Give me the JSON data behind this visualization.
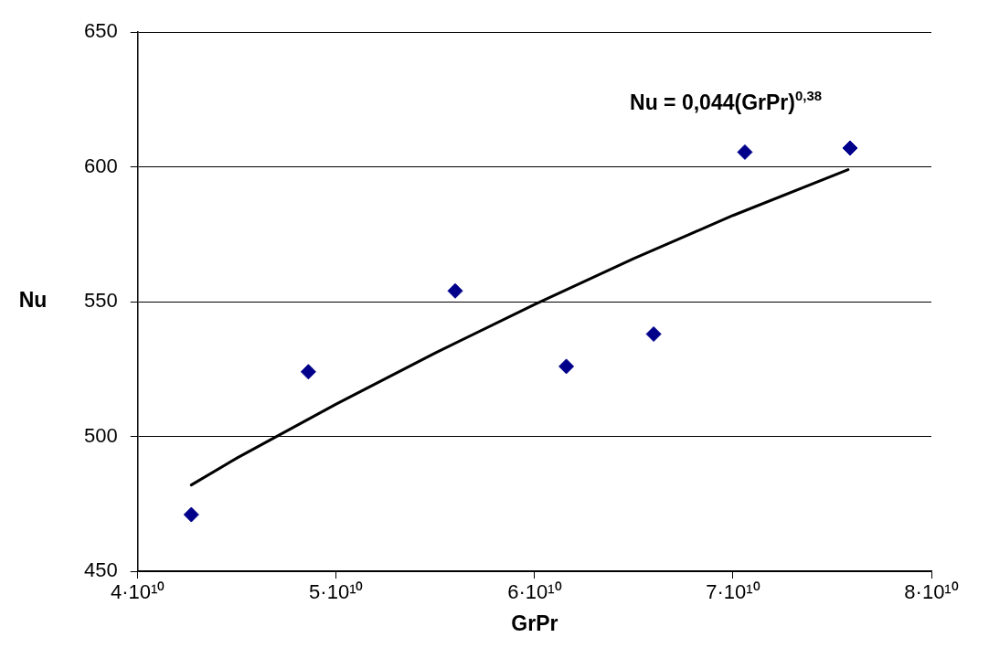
{
  "chart_data": {
    "type": "scatter",
    "xlabel": "GrPr",
    "ylabel": "Nu",
    "xlim": [
      40000000000,
      80000000000
    ],
    "ylim": [
      450,
      650
    ],
    "xticks": [
      {
        "value": 40000000000,
        "label": "4·10¹⁰"
      },
      {
        "value": 50000000000,
        "label": "5·10¹⁰"
      },
      {
        "value": 60000000000,
        "label": "6·10¹⁰"
      },
      {
        "value": 70000000000,
        "label": "7·10¹⁰"
      },
      {
        "value": 80000000000,
        "label": "8·10¹⁰"
      }
    ],
    "yticks": [
      450,
      500,
      550,
      600,
      650
    ],
    "grid": "y",
    "legend": false,
    "annotations": [
      "Nu = 0,044(GrPr)$^{0,38}$"
    ],
    "series": [
      {
        "color": "#00008b",
        "marker": "diamond",
        "x": [
          42700000000,
          48600000000,
          56000000000,
          61600000000,
          66000000000,
          70600000000,
          75900000000
        ],
        "values": [
          471,
          524,
          554,
          526,
          538,
          605.5,
          607
        ]
      },
      {
        "type": "line",
        "color": "#000000",
        "marker": "none",
        "line_style": "solid",
        "x": [
          42700000000,
          45000000000,
          50000000000,
          55000000000,
          60000000000,
          65000000000,
          70000000000,
          75800000000
        ],
        "values": [
          482,
          492,
          512,
          531,
          549,
          566,
          582,
          599
        ]
      }
    ]
  }
}
